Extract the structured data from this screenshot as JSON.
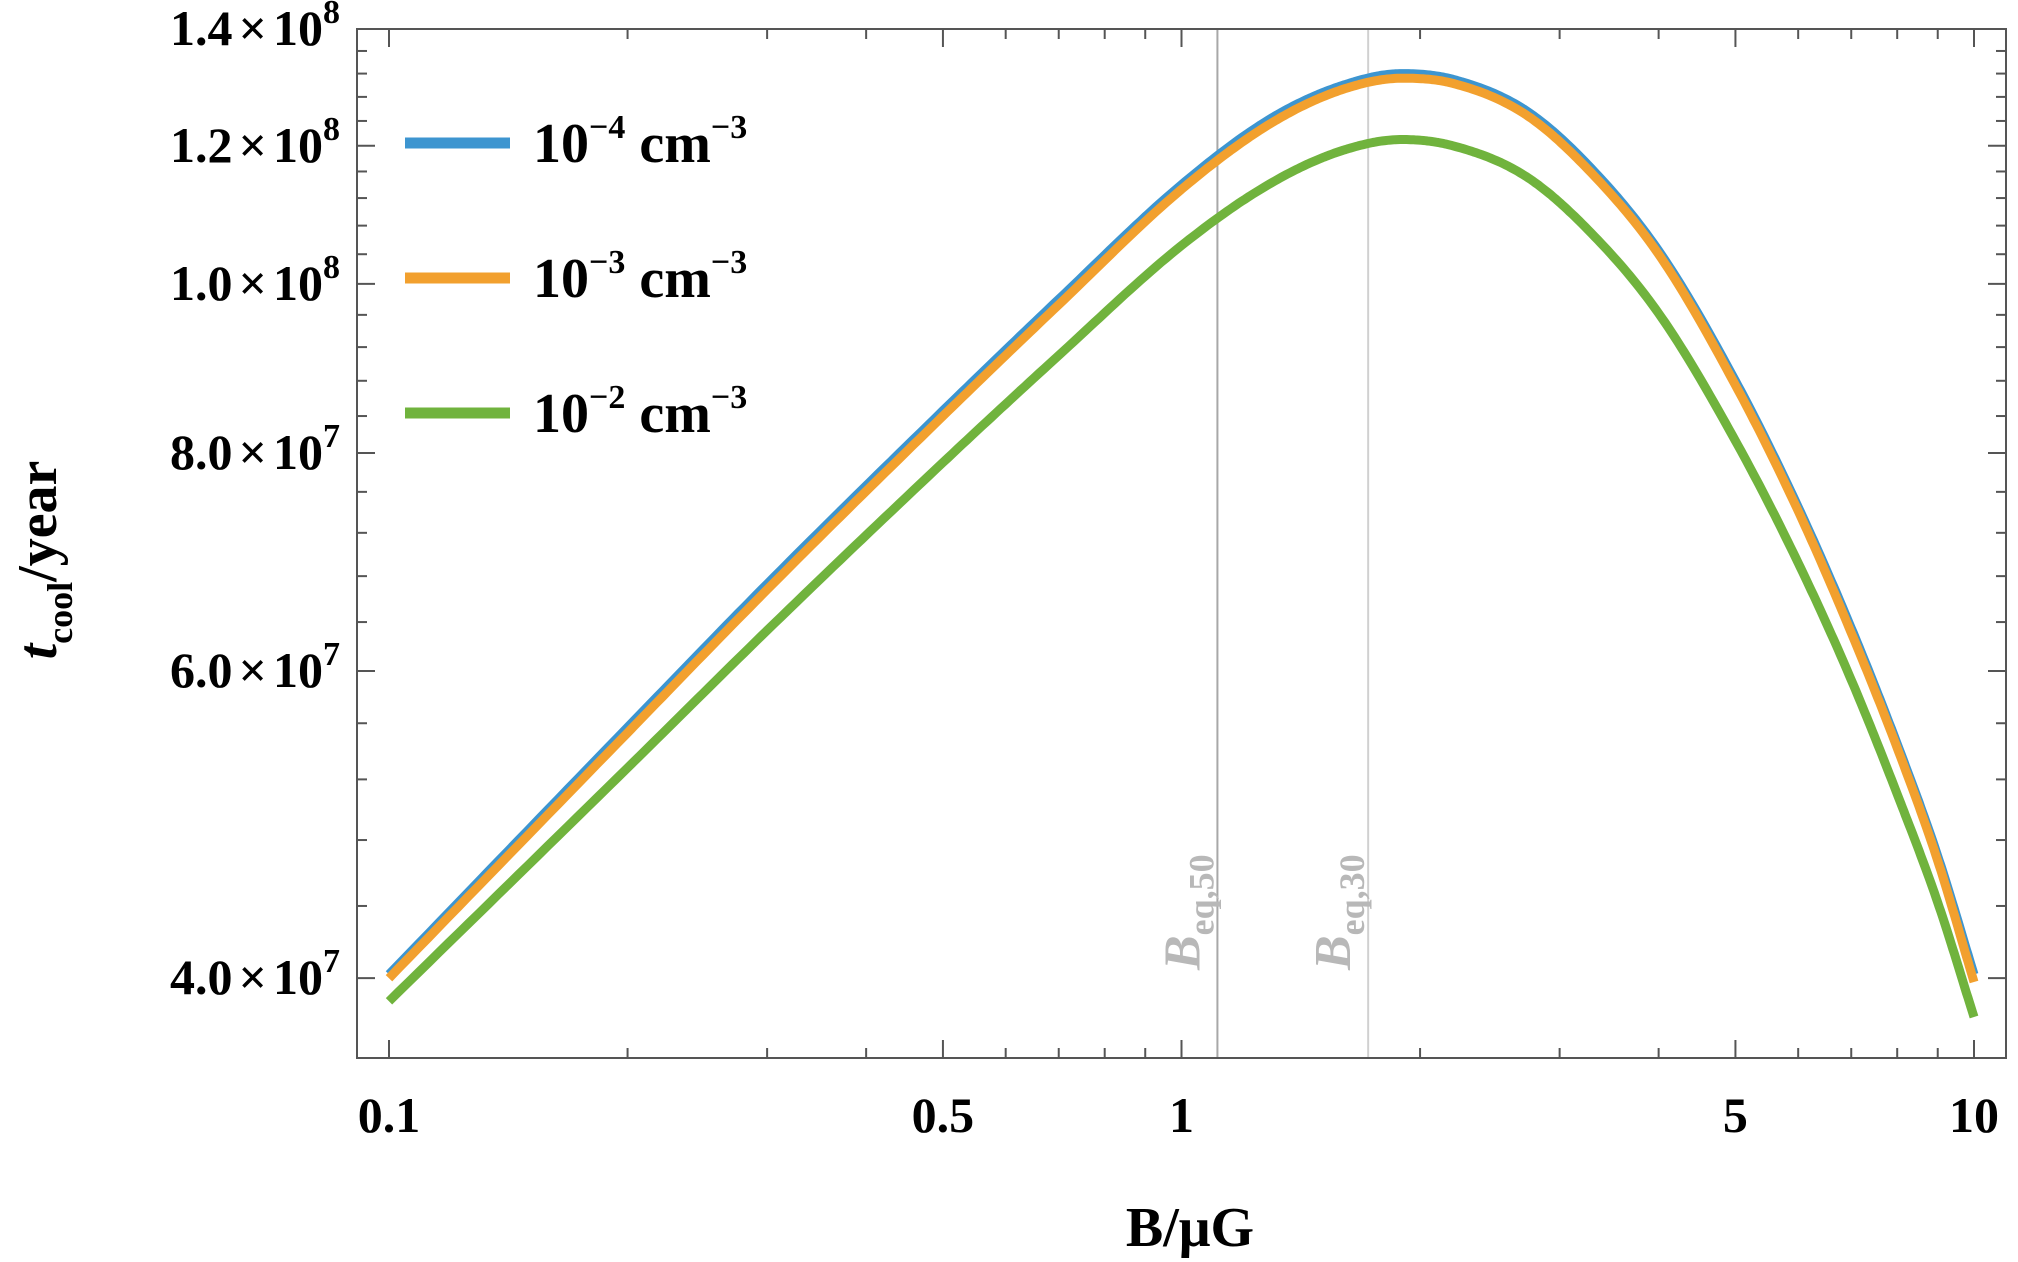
{
  "chart_data": {
    "type": "line",
    "xscale": "log",
    "yscale": "log",
    "xlim": [
      0.1,
      10
    ],
    "ylim": [
      36000000,
      140000000
    ],
    "grid": false,
    "legend_position": "top-left",
    "xlabel": "B/μG",
    "ylabel": {
      "main": "t",
      "sub": "cool",
      "rest": "/year"
    },
    "x_ticks": [
      {
        "value": 0.1,
        "label": "0.1"
      },
      {
        "value": 0.5,
        "label": "0.5"
      },
      {
        "value": 1,
        "label": "1"
      },
      {
        "value": 5,
        "label": "5"
      },
      {
        "value": 10,
        "label": "10"
      }
    ],
    "y_ticks": [
      {
        "value": 40000000,
        "mant": "4.0",
        "times": "×",
        "base": "10",
        "exp": "7"
      },
      {
        "value": 60000000,
        "mant": "6.0",
        "times": "×",
        "base": "10",
        "exp": "7"
      },
      {
        "value": 80000000,
        "mant": "8.0",
        "times": "×",
        "base": "10",
        "exp": "7"
      },
      {
        "value": 100000000,
        "mant": "1.0",
        "times": "×",
        "base": "10",
        "exp": "8"
      },
      {
        "value": 120000000,
        "mant": "1.2",
        "times": "×",
        "base": "10",
        "exp": "8"
      },
      {
        "value": 140000000,
        "mant": "1.4",
        "times": "×",
        "base": "10",
        "exp": "8"
      }
    ],
    "vlines": [
      {
        "x": 1.11,
        "label": "B",
        "sub": "eq,50",
        "color": "#a8a8a8"
      },
      {
        "x": 1.72,
        "label": "B",
        "sub": "eq,30",
        "color": "#d0d0d0"
      }
    ],
    "series": [
      {
        "base": "10",
        "exp": "−4",
        "unit": " cm",
        "unit_exp": "−3",
        "color": "#3d95d0",
        "x": [
          0.1,
          0.2,
          0.3,
          0.5,
          0.7,
          1.0,
          1.3,
          1.6,
          1.9,
          2.2,
          2.7,
          3.2,
          4.0,
          5.0,
          6.0,
          7.0,
          8.0,
          9.0,
          10.0
        ],
        "y": [
          40200000,
          55700000,
          67300000,
          84600000,
          98000000,
          114000000,
          124500000,
          130000000,
          132000000,
          131000000,
          126000000,
          118000000,
          104500000,
          88000000,
          74500000,
          63500000,
          54500000,
          47000000,
          40200000
        ]
      },
      {
        "base": "10",
        "exp": "−3",
        "unit": " cm",
        "unit_exp": "−3",
        "color": "#f2a02e",
        "x": [
          0.1,
          0.2,
          0.3,
          0.5,
          0.7,
          1.0,
          1.3,
          1.6,
          1.9,
          2.2,
          2.7,
          3.2,
          4.0,
          5.0,
          6.0,
          7.0,
          8.0,
          9.0,
          10.0
        ],
        "y": [
          40000000,
          55300000,
          66800000,
          84000000,
          97300000,
          113300000,
          123700000,
          129300000,
          131200000,
          130300000,
          125300000,
          117300000,
          104000000,
          87500000,
          74100000,
          63100000,
          54200000,
          46700000,
          39800000
        ]
      },
      {
        "base": "10",
        "exp": "−2",
        "unit": " cm",
        "unit_exp": "−3",
        "color": "#70b33d",
        "x": [
          0.1,
          0.2,
          0.3,
          0.5,
          0.7,
          1.0,
          1.3,
          1.6,
          1.9,
          2.2,
          2.7,
          3.2,
          4.0,
          5.0,
          6.0,
          7.0,
          8.0,
          9.0,
          10.0
        ],
        "y": [
          38800000,
          52800000,
          63300000,
          79000000,
          91000000,
          105200000,
          114300000,
          119300000,
          121000000,
          120000000,
          115500000,
          108300000,
          96200000,
          81300000,
          69200000,
          59300000,
          51000000,
          44200000,
          38000000
        ]
      }
    ]
  }
}
